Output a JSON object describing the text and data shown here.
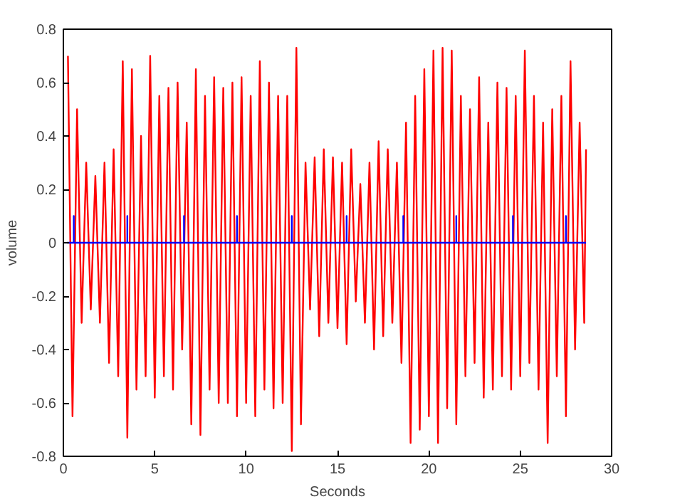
{
  "chart_data": {
    "type": "line",
    "xlabel": "Seconds",
    "ylabel": "volume",
    "xlim": [
      0,
      30
    ],
    "xticks": [
      0,
      5,
      10,
      15,
      20,
      25,
      30
    ],
    "ylim": [
      -0.8,
      0.8
    ],
    "yticks": [
      -0.8,
      -0.6,
      -0.4,
      -0.2,
      0,
      0.2,
      0.4,
      0.6,
      0.8
    ],
    "grid": false,
    "marker": "none",
    "line_style": "solid",
    "series": [
      {
        "color": "#ff0000",
        "x": [
          0.25,
          0.5,
          0.75,
          1.0,
          1.25,
          1.5,
          1.75,
          2.0,
          2.25,
          2.5,
          2.75,
          3.0,
          3.25,
          3.5,
          3.75,
          4.0,
          4.25,
          4.5,
          4.75,
          5.0,
          5.25,
          5.5,
          5.75,
          6.0,
          6.25,
          6.5,
          6.75,
          7.0,
          7.25,
          7.5,
          7.75,
          8.0,
          8.25,
          8.5,
          8.75,
          9.0,
          9.25,
          9.5,
          9.75,
          10.0,
          10.25,
          10.5,
          10.75,
          11.0,
          11.25,
          11.5,
          11.75,
          12.0,
          12.25,
          12.5,
          12.75,
          13.0,
          13.25,
          13.5,
          13.75,
          14.0,
          14.25,
          14.5,
          14.75,
          15.0,
          15.25,
          15.5,
          15.75,
          16.0,
          16.25,
          16.5,
          16.75,
          17.0,
          17.25,
          17.5,
          17.75,
          18.0,
          18.25,
          18.5,
          18.75,
          19.0,
          19.25,
          19.5,
          19.75,
          20.0,
          20.25,
          20.5,
          20.75,
          21.0,
          21.25,
          21.5,
          21.75,
          22.0,
          22.25,
          22.5,
          22.75,
          23.0,
          23.25,
          23.5,
          23.75,
          24.0,
          24.25,
          24.5,
          24.75,
          25.0,
          25.25,
          25.5,
          25.75,
          26.0,
          26.25,
          26.5,
          26.75,
          27.0,
          27.25,
          27.5,
          27.75,
          28.0,
          28.25,
          28.5,
          28.6
        ],
        "values": [
          0.7,
          -0.65,
          0.5,
          -0.3,
          0.3,
          -0.25,
          0.25,
          -0.3,
          0.3,
          -0.45,
          0.35,
          -0.5,
          0.68,
          -0.73,
          0.65,
          -0.55,
          0.4,
          -0.5,
          0.7,
          -0.58,
          0.55,
          -0.5,
          0.58,
          -0.55,
          0.6,
          -0.4,
          0.45,
          -0.68,
          0.65,
          -0.72,
          0.55,
          -0.55,
          0.62,
          -0.6,
          0.58,
          -0.6,
          0.6,
          -0.65,
          0.62,
          -0.6,
          0.55,
          -0.65,
          0.68,
          -0.55,
          0.6,
          -0.62,
          0.55,
          -0.6,
          0.55,
          -0.78,
          0.73,
          -0.68,
          0.3,
          -0.25,
          0.32,
          -0.35,
          0.35,
          -0.3,
          0.32,
          -0.32,
          0.3,
          -0.38,
          0.35,
          -0.22,
          0.22,
          -0.3,
          0.3,
          -0.4,
          0.38,
          -0.35,
          0.35,
          -0.3,
          0.3,
          -0.45,
          0.45,
          -0.75,
          0.55,
          -0.7,
          0.65,
          -0.65,
          0.72,
          -0.75,
          0.73,
          -0.62,
          0.72,
          -0.68,
          0.55,
          -0.5,
          0.5,
          -0.45,
          0.62,
          -0.58,
          0.45,
          -0.55,
          0.6,
          -0.5,
          0.58,
          -0.55,
          0.55,
          -0.5,
          0.72,
          -0.45,
          0.55,
          -0.55,
          0.45,
          -0.75,
          0.5,
          -0.5,
          0.55,
          -0.65,
          0.68,
          -0.4,
          0.45,
          -0.3,
          0.35
        ]
      },
      {
        "color": "#0000ff",
        "x": [
          0.2,
          0.57,
          0.57,
          0.57,
          3.5,
          3.5,
          3.5,
          6.6,
          6.6,
          6.6,
          9.5,
          9.5,
          9.5,
          12.5,
          12.5,
          12.5,
          15.5,
          15.5,
          15.5,
          18.6,
          18.6,
          18.6,
          21.5,
          21.5,
          21.5,
          24.6,
          24.6,
          24.6,
          27.5,
          27.5,
          27.5,
          28.6
        ],
        "values": [
          0,
          0,
          0.1,
          0,
          0,
          0.1,
          0,
          0,
          0.1,
          0,
          0,
          0.1,
          0,
          0,
          0.1,
          0,
          0,
          0.1,
          0,
          0,
          0.1,
          0,
          0,
          0.1,
          0,
          0,
          0.1,
          0,
          0,
          0.1,
          0,
          0
        ]
      }
    ]
  }
}
